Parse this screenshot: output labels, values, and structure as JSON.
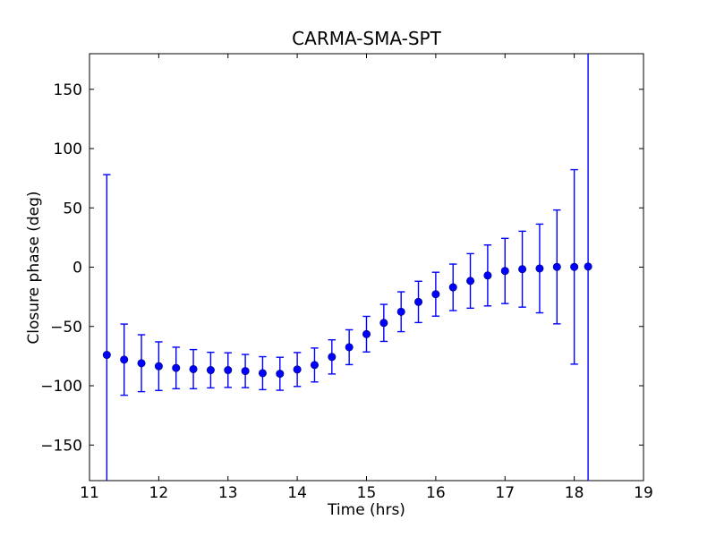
{
  "figure": {
    "background_color": "#ffffff",
    "frame_color": "#000000"
  },
  "chart_data": {
    "type": "scatter",
    "title": "CARMA-SMA-SPT",
    "xlabel": "Time (hrs)",
    "ylabel": "Closure phase (deg)",
    "xlim": [
      11,
      19
    ],
    "ylim": [
      -180,
      180
    ],
    "xticks": [
      11,
      12,
      13,
      14,
      15,
      16,
      17,
      18,
      19
    ],
    "yticks": [
      -150,
      -100,
      -50,
      0,
      50,
      100,
      150
    ],
    "grid": false,
    "legend": false,
    "marker": "circle",
    "error_bars": true,
    "notes": "errorbar plot; first and last error bars extend beyond the axes and are clipped at the plot frame",
    "series": [
      {
        "name": "closure phase",
        "color": "#0000ff",
        "x": [
          11.25,
          11.5,
          11.75,
          12.0,
          12.25,
          12.5,
          12.75,
          13.0,
          13.25,
          13.5,
          13.75,
          14.0,
          14.25,
          14.5,
          14.75,
          15.0,
          15.25,
          15.5,
          15.75,
          16.0,
          16.25,
          16.5,
          16.75,
          17.0,
          17.25,
          17.5,
          17.75,
          18.0,
          18.2
        ],
        "y": [
          -74,
          -78,
          -81,
          -83.5,
          -85,
          -86,
          -86.8,
          -86.8,
          -87.6,
          -89.4,
          -89.9,
          -86.3,
          -82.5,
          -75.7,
          -67.5,
          -56.5,
          -47,
          -37.6,
          -29.3,
          -22.8,
          -17,
          -11.6,
          -7,
          -3.2,
          -1.7,
          -1.1,
          0.2,
          0.2,
          0.5
        ],
        "yerr": [
          152,
          30,
          24,
          20.5,
          17.5,
          16.5,
          15,
          14.6,
          14,
          13.9,
          13.9,
          14.3,
          14.3,
          14.4,
          14.7,
          15,
          15.6,
          16.8,
          17.4,
          18.5,
          19.6,
          23,
          25.7,
          27.5,
          32,
          37.4,
          48,
          82,
          300
        ]
      }
    ]
  }
}
